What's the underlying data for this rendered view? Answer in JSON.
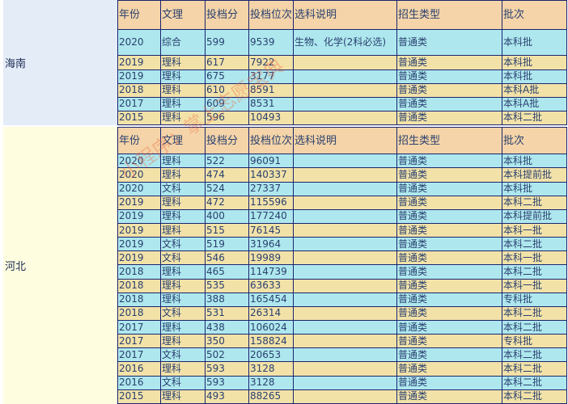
{
  "headers": [
    "年份",
    "文理",
    "投档分",
    "投档位次",
    "选科说明",
    "招生类型",
    "批次"
  ],
  "sections": [
    {
      "province": "海南",
      "rows": [
        [
          "2020",
          "综合",
          "599",
          "9539",
          "生物、化学(2科必选)",
          "普通类",
          "本科批"
        ],
        [
          "2019",
          "理科",
          "617",
          "7922",
          "",
          "普通类",
          "本科批"
        ],
        [
          "2019",
          "理科",
          "675",
          "3177",
          "",
          "普通类",
          "本科批"
        ],
        [
          "2018",
          "理科",
          "610",
          "8591",
          "",
          "普通类",
          "本科A批"
        ],
        [
          "2017",
          "理科",
          "609",
          "8531",
          "",
          "普通类",
          "本科A批"
        ],
        [
          "2015",
          "理科",
          "596",
          "10493",
          "",
          "普通类",
          "本科二批"
        ]
      ]
    },
    {
      "province": "河北",
      "rows": [
        [
          "2020",
          "理科",
          "522",
          "96091",
          "",
          "普通类",
          "本科批"
        ],
        [
          "2020",
          "理科",
          "474",
          "140337",
          "",
          "普通类",
          "本科提前批"
        ],
        [
          "2020",
          "文科",
          "524",
          "27337",
          "",
          "普通类",
          "本科批"
        ],
        [
          "2019",
          "理科",
          "472",
          "115596",
          "",
          "普通类",
          "本科二批"
        ],
        [
          "2019",
          "理科",
          "400",
          "177240",
          "",
          "普通类",
          "本科提前批"
        ],
        [
          "2019",
          "理科",
          "515",
          "76145",
          "",
          "普通类",
          "本科一批"
        ],
        [
          "2019",
          "文科",
          "519",
          "31964",
          "",
          "普通类",
          "本科二批"
        ],
        [
          "2019",
          "文科",
          "546",
          "19989",
          "",
          "普通类",
          "本科一批"
        ],
        [
          "2018",
          "理科",
          "465",
          "114739",
          "",
          "普通类",
          "本科二批"
        ],
        [
          "2018",
          "理科",
          "535",
          "63633",
          "",
          "普通类",
          "本科一批"
        ],
        [
          "2018",
          "理科",
          "388",
          "165454",
          "",
          "普通类",
          "专科批"
        ],
        [
          "2018",
          "文科",
          "531",
          "26314",
          "",
          "普通类",
          "本科二批"
        ],
        [
          "2017",
          "理科",
          "438",
          "106024",
          "",
          "普通类",
          "本科二批"
        ],
        [
          "2017",
          "理科",
          "350",
          "158824",
          "",
          "普通类",
          "专科批"
        ],
        [
          "2017",
          "文科",
          "502",
          "20653",
          "",
          "普通类",
          "本科二批"
        ],
        [
          "2016",
          "理科",
          "593",
          "3128",
          "",
          "普通类",
          "本科二批"
        ],
        [
          "2016",
          "文科",
          "593",
          "3128",
          "",
          "普通类",
          "本科二批"
        ],
        [
          "2015",
          "理科",
          "493",
          "88265",
          "",
          "普通类",
          "本科二批"
        ]
      ]
    }
  ],
  "watermark": "小程序：掌上志愿宝典",
  "colors": {
    "header": "#f4d4a8",
    "row_cyan": "#aee8ee",
    "row_yellow": "#f2e2a8",
    "hainan_bg": "#e4ecf8",
    "hebei_bg": "#fffde0",
    "border": "#1a2470"
  }
}
